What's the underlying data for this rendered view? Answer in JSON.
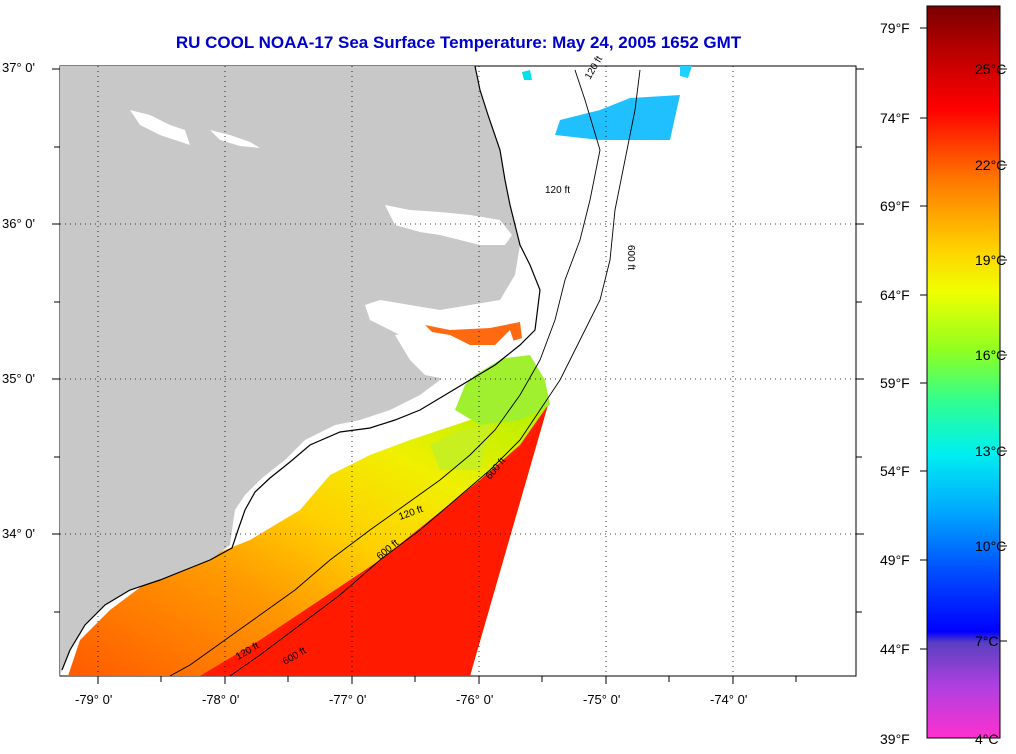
{
  "title": "RU COOL  NOAA-17  Sea Surface Temperature:  May 24, 2005 1652 GMT",
  "title_color": "#0000cc",
  "lat_labels": [
    "37° 0'",
    "36° 0'",
    "35° 0'",
    "34° 0'"
  ],
  "lon_labels": [
    "-79° 0'",
    "-78° 0'",
    "-77° 0'",
    "-76° 0'",
    "-75° 0'",
    "-74° 0'"
  ],
  "colorbar": {
    "fahrenheit_labels": [
      "79°F",
      "74°F",
      "69°F",
      "64°F",
      "59°F",
      "54°F",
      "49°F",
      "44°F",
      "39°F"
    ],
    "celsius_labels": [
      "25°C",
      "22°C",
      "19°C",
      "16°C",
      "13°C",
      "10°C",
      "7°C",
      "4°C"
    ]
  },
  "contour_labels": [
    "120 ft",
    "600 ft",
    "120 ft",
    "600 ft",
    "120 ft",
    "600 ft",
    "120 ft",
    "600 ft"
  ],
  "colors": {
    "land": "#c8c8c8",
    "no_data": "#ffffff",
    "warm": "#ff1a00",
    "orange": "#ff8c00",
    "yellow": "#f0e000",
    "green": "#80f000",
    "cyan": "#20c0ff"
  }
}
